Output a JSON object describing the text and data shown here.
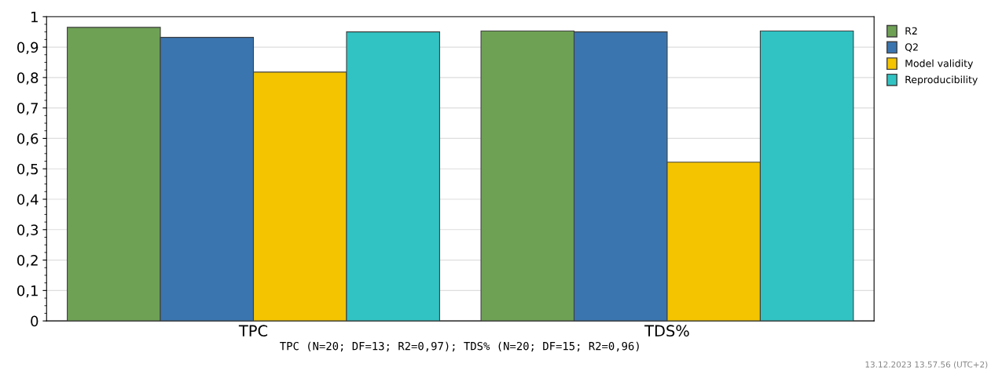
{
  "chart_data": {
    "type": "bar",
    "categories": [
      "TPC",
      "TDS%"
    ],
    "xlabel": "TPC (N=20; DF=13; R2=0,97); TDS% (N=20; DF=15; R2=0,96)",
    "series": [
      {
        "name": "R2",
        "color": "#6fa155",
        "values": [
          0.965,
          0.953
        ]
      },
      {
        "name": "Q2",
        "color": "#3a75b0",
        "values": [
          0.932,
          0.95
        ]
      },
      {
        "name": "Model validity",
        "color": "#f5c400",
        "values": [
          0.818,
          0.522
        ]
      },
      {
        "name": "Reproducibility",
        "color": "#31c3c3",
        "values": [
          0.95,
          0.953
        ]
      }
    ],
    "ylim": [
      0,
      1
    ],
    "yticks": [
      {
        "value": 0,
        "label": "0"
      },
      {
        "value": 0.1,
        "label": "0,1"
      },
      {
        "value": 0.2,
        "label": "0,2"
      },
      {
        "value": 0.3,
        "label": "0,3"
      },
      {
        "value": 0.4,
        "label": "0,4"
      },
      {
        "value": 0.5,
        "label": "0,5"
      },
      {
        "value": 0.6,
        "label": "0,6"
      },
      {
        "value": 0.7,
        "label": "0,7"
      },
      {
        "value": 0.8,
        "label": "0,8"
      },
      {
        "value": 0.9,
        "label": "0,9"
      },
      {
        "value": 1,
        "label": "1"
      }
    ],
    "grid": "y",
    "legend": "top right",
    "annotations": [
      "13.12.2023 13.57.56 (UTC+2)"
    ]
  }
}
